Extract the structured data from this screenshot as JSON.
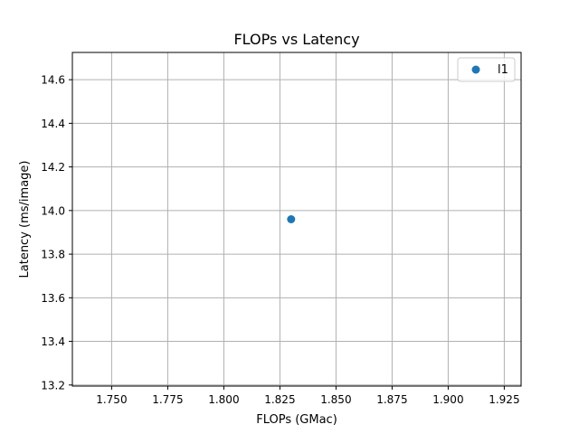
{
  "chart_data": {
    "type": "scatter",
    "title": "FLOPs vs Latency",
    "xlabel": "FLOPs (GMac)",
    "ylabel": "Latency (ms/image)",
    "xlim": [
      1.7325,
      1.9325
    ],
    "ylim": [
      13.195,
      14.725
    ],
    "xticks": [
      "1.750",
      "1.775",
      "1.800",
      "1.825",
      "1.850",
      "1.875",
      "1.900",
      "1.925"
    ],
    "yticks": [
      "13.2",
      "13.4",
      "13.6",
      "13.8",
      "14.0",
      "14.2",
      "14.4",
      "14.6"
    ],
    "grid": true,
    "legend_position": "top-right",
    "series": [
      {
        "name": "l1",
        "color": "#1f77b4",
        "points": [
          {
            "x": 1.83,
            "y": 13.96
          }
        ]
      }
    ]
  }
}
